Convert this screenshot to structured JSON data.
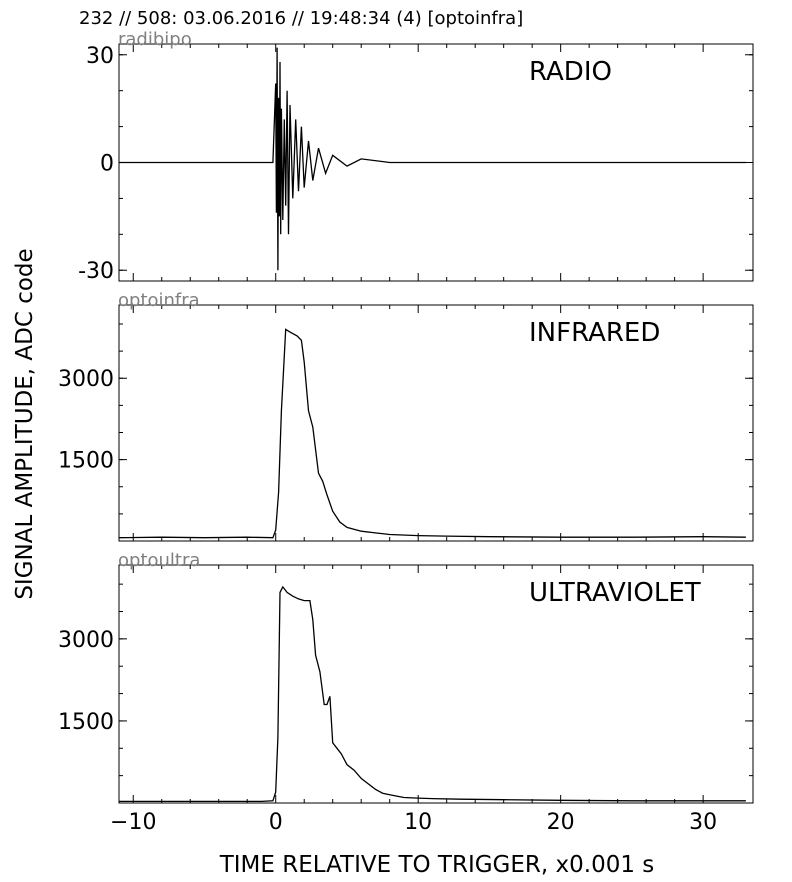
{
  "header": "232 // 508:   03.06.2016 // 19:48:34 (4)  [optoinfra]",
  "ylabel": "SIGNAL AMPLITUDE,  ADC code",
  "xlabel": "TIME RELATIVE TO TRIGGER,   x0.001 s",
  "xticks": [
    "−10",
    "0",
    "10",
    "20",
    "30"
  ],
  "chart_data": [
    {
      "type": "line",
      "channel": "radibipo",
      "title": "RADIO",
      "xlim": [
        -11.0,
        33.5
      ],
      "ylim": [
        -33,
        33
      ],
      "yticks": [
        "30",
        "0",
        "-30"
      ],
      "yticks_values": [
        30,
        0,
        -30
      ],
      "x": [
        -11.0,
        -0.2,
        0.0,
        0.05,
        0.1,
        0.15,
        0.2,
        0.25,
        0.3,
        0.35,
        0.4,
        0.5,
        0.6,
        0.7,
        0.8,
        0.9,
        1.0,
        1.2,
        1.4,
        1.6,
        1.8,
        2.0,
        2.3,
        2.6,
        3.0,
        3.5,
        4.0,
        5.0,
        6.0,
        8.0,
        12.0,
        20.0,
        33.0
      ],
      "values": [
        0,
        0,
        22,
        -14,
        32,
        -30,
        18,
        -15,
        28,
        -20,
        15,
        -16,
        12,
        -12,
        20,
        -20,
        16,
        -10,
        12,
        -8,
        10,
        -7,
        6,
        -5,
        4,
        -3,
        2,
        -1,
        1,
        0,
        0,
        0,
        0
      ]
    },
    {
      "type": "line",
      "channel": "optoinfra",
      "title": "INFRARED",
      "xlim": [
        -11.0,
        33.5
      ],
      "ylim": [
        0,
        4350
      ],
      "yticks": [
        "3000",
        "1500"
      ],
      "yticks_values": [
        3000,
        1500
      ],
      "x": [
        -11.0,
        -8.0,
        -5.0,
        -2.0,
        -0.2,
        0.0,
        0.2,
        0.4,
        0.7,
        1.0,
        1.5,
        1.8,
        2.0,
        2.3,
        2.6,
        3.0,
        3.3,
        3.6,
        4.0,
        4.5,
        5.0,
        6.0,
        7.0,
        8.0,
        10.0,
        12.0,
        15.0,
        20.0,
        25.0,
        30.0,
        33.0
      ],
      "values": [
        60,
        70,
        60,
        70,
        60,
        200,
        900,
        2400,
        3900,
        3850,
        3780,
        3700,
        3300,
        2400,
        2100,
        1250,
        1100,
        850,
        550,
        350,
        250,
        180,
        150,
        120,
        100,
        90,
        80,
        70,
        70,
        80,
        70
      ]
    },
    {
      "type": "line",
      "channel": "optoultra",
      "title": "ULTRAVIOLET",
      "xlim": [
        -11.0,
        33.5
      ],
      "ylim": [
        0,
        4350
      ],
      "yticks": [
        "3000",
        "1500"
      ],
      "yticks_values": [
        3000,
        1500
      ],
      "x": [
        -11.0,
        -5.0,
        -1.0,
        -0.2,
        0.0,
        0.15,
        0.3,
        0.5,
        0.8,
        1.2,
        1.6,
        2.0,
        2.4,
        2.6,
        2.8,
        3.1,
        3.4,
        3.6,
        3.8,
        4.0,
        4.3,
        4.6,
        5.0,
        5.5,
        6.0,
        6.5,
        7.0,
        7.5,
        8.0,
        9.0,
        10.0,
        11.0,
        13.0,
        16.0,
        20.0,
        25.0,
        30.0,
        33.0
      ],
      "values": [
        30,
        30,
        30,
        40,
        200,
        1200,
        3850,
        3950,
        3850,
        3780,
        3730,
        3700,
        3700,
        3350,
        2700,
        2400,
        1800,
        1800,
        1950,
        1100,
        1000,
        900,
        700,
        600,
        450,
        350,
        250,
        180,
        150,
        100,
        90,
        80,
        70,
        60,
        50,
        40,
        40,
        40
      ]
    }
  ]
}
